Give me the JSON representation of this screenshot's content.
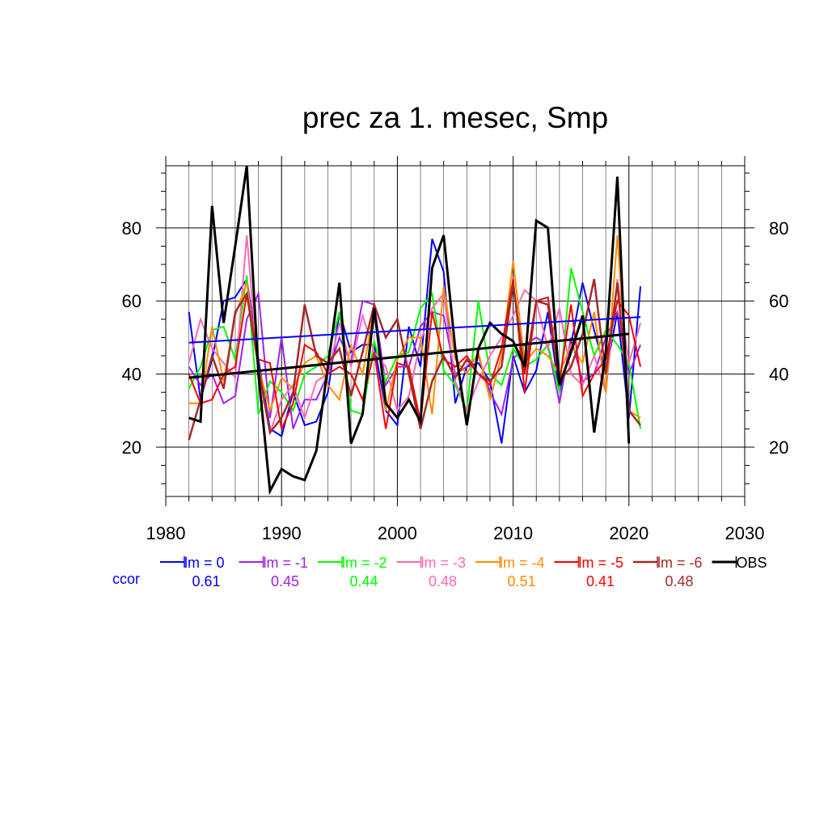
{
  "chart_data": {
    "type": "line",
    "title": "prec za 1. mesec, Smp",
    "xlabel": "",
    "ylabel": "",
    "xlim": [
      1980,
      2030
    ],
    "ylim": [
      6.5,
      97
    ],
    "x_ticks": [
      1980,
      1990,
      2000,
      2010,
      2020,
      2030
    ],
    "y_ticks": [
      20,
      40,
      60,
      80
    ],
    "grid": true,
    "legend_position": "bottom",
    "ccor_label": "ccor",
    "x": [
      1982,
      1983,
      1984,
      1985,
      1986,
      1987,
      1988,
      1989,
      1990,
      1991,
      1992,
      1993,
      1994,
      1995,
      1996,
      1997,
      1998,
      1999,
      2000,
      2001,
      2002,
      2003,
      2004,
      2005,
      2006,
      2007,
      2008,
      2009,
      2010,
      2011,
      2012,
      2013,
      2014,
      2015,
      2016,
      2017,
      2018,
      2019,
      2020,
      2021
    ],
    "series": [
      {
        "name": "lm = 0",
        "color": "#0000ff",
        "width": 2,
        "ccor": "0.61",
        "values": [
          57,
          33,
          44,
          60,
          61,
          66,
          44,
          25,
          23,
          35,
          26,
          27,
          35,
          57,
          46,
          48,
          48,
          30,
          26,
          53,
          42,
          77,
          68,
          32,
          42,
          43,
          38,
          21,
          45,
          35,
          41,
          57,
          35,
          48,
          65,
          52,
          40,
          57,
          28,
          64
        ]
      },
      {
        "name": "lm = -1",
        "color": "#a020f0",
        "width": 2,
        "ccor": "0.45",
        "values": [
          42,
          37,
          40,
          32,
          34,
          55,
          62,
          28,
          50,
          25,
          33,
          33,
          40,
          50,
          43,
          60,
          59,
          37,
          42,
          42,
          53,
          57,
          56,
          40,
          42,
          45,
          35,
          29,
          44,
          48,
          50,
          48,
          32,
          50,
          38,
          40,
          50,
          57,
          40,
          48
        ]
      },
      {
        "name": "lm = -2",
        "color": "#00ff00",
        "width": 2,
        "ccor": "0.44",
        "values": [
          36,
          42,
          52,
          53,
          44,
          67,
          29,
          38,
          35,
          30,
          40,
          42,
          45,
          57,
          30,
          29,
          49,
          38,
          45,
          46,
          58,
          62,
          41,
          37,
          30,
          60,
          40,
          37,
          47,
          42,
          44,
          48,
          35,
          69,
          57,
          45,
          52,
          48,
          43,
          25
        ]
      },
      {
        "name": "lm = -3",
        "color": "#ff69b4",
        "width": 2,
        "ccor": "0.48",
        "values": [
          43,
          55,
          47,
          43,
          39,
          78,
          40,
          24,
          33,
          37,
          28,
          38,
          40,
          54,
          42,
          56,
          46,
          42,
          30,
          34,
          49,
          58,
          62,
          38,
          30,
          38,
          45,
          50,
          56,
          63,
          60,
          47,
          58,
          40,
          37,
          45,
          35,
          66,
          43,
          54
        ]
      },
      {
        "name": "lm = -4",
        "color": "#ff8c00",
        "width": 2,
        "ccor": "0.51",
        "values": [
          32,
          32,
          53,
          38,
          56,
          65,
          42,
          30,
          39,
          36,
          43,
          45,
          37,
          33,
          48,
          40,
          58,
          30,
          44,
          50,
          50,
          29,
          64,
          44,
          40,
          46,
          33,
          45,
          71,
          43,
          47,
          45,
          40,
          48,
          43,
          57,
          35,
          78,
          30,
          28
        ]
      },
      {
        "name": "lm = -5",
        "color": "#ff0000",
        "width": 2,
        "ccor": "0.41",
        "values": [
          40,
          32,
          33,
          40,
          42,
          62,
          44,
          43,
          25,
          32,
          48,
          46,
          40,
          42,
          40,
          33,
          46,
          25,
          43,
          42,
          27,
          57,
          44,
          42,
          45,
          40,
          37,
          47,
          66,
          35,
          60,
          61,
          38,
          59,
          34,
          40,
          44,
          60,
          56,
          42
        ]
      },
      {
        "name": "lm = -6",
        "color": "#a52a2a",
        "width": 2.5,
        "ccor": "0.48",
        "values": [
          22,
          33,
          45,
          36,
          57,
          62,
          42,
          24,
          28,
          35,
          59,
          45,
          43,
          47,
          34,
          46,
          59,
          50,
          55,
          40,
          25,
          38,
          45,
          39,
          44,
          40,
          38,
          42,
          65,
          40,
          60,
          59,
          38,
          42,
          51,
          66,
          40,
          65,
          30,
          26
        ]
      },
      {
        "name": "OBS",
        "color": "#000000",
        "width": 3,
        "ccor": "",
        "values": [
          28,
          27,
          86,
          54,
          75,
          97,
          40,
          8,
          14,
          12,
          11,
          19,
          42,
          65,
          21,
          29,
          58,
          32,
          28,
          33,
          27,
          69,
          78,
          47,
          26,
          47,
          54,
          51,
          49,
          42,
          82,
          80,
          37,
          46,
          56,
          24,
          46,
          94,
          21,
          null
        ]
      }
    ],
    "trend_lines": [
      {
        "name": "lm = 0 trend",
        "color": "#0000ff",
        "width": 2,
        "x": [
          1982,
          2021
        ],
        "y": [
          48.6,
          55.6
        ]
      },
      {
        "name": "OBS trend",
        "color": "#000000",
        "width": 3,
        "x": [
          1982,
          2020
        ],
        "y": [
          39,
          51
        ]
      }
    ]
  }
}
